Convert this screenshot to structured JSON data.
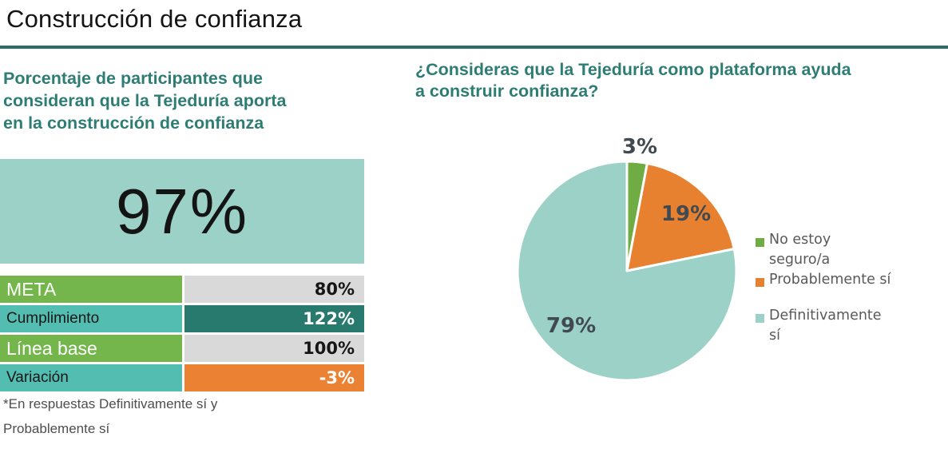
{
  "page": {
    "title": "Construcción de confianza"
  },
  "left_panel": {
    "heading": "Porcentaje de participantes que\nconsideran que la Tejeduría aporta\nen la construcción de confianza",
    "footnote": "*En respuestas Definitivamente sí y\nProbablemente sí"
  },
  "right_panel": {
    "heading": "¿Consideras que la Tejeduría como plataforma ayuda\na construir confianza?"
  },
  "chart_data": [
    {
      "type": "table",
      "title": "Porcentaje de participantes que consideran que la Tejeduría aporta en la construcción de confianza",
      "big_number": "97%",
      "rows": [
        [
          "META",
          "80%"
        ],
        [
          "Cumplimiento",
          "122%"
        ],
        [
          "Línea base",
          "100%"
        ],
        [
          "Variación",
          "-3%"
        ]
      ],
      "footnote": "*En respuestas Definitivamente sí y Probablemente sí"
    },
    {
      "type": "pie",
      "title": "¿Consideras que la Tejeduría como plataforma ayuda a construir confianza?",
      "categories": [
        "No estoy seguro/a",
        "Probablemente sí",
        "Definitivamente sí"
      ],
      "values": [
        3,
        19,
        79
      ],
      "labels": [
        "3%",
        "19%",
        "79%"
      ],
      "colors": [
        "#6FAC44",
        "#E8812F",
        "#9CD1C7"
      ],
      "legend_position": "right",
      "start_angle_deg": 0,
      "slice_border_color": "#ffffff"
    }
  ],
  "colors": {
    "heading_teal": "#2E7D75",
    "rule_teal": "#2F6B68",
    "big_box_teal": "#9CD1C7",
    "table_green": "#74B64B",
    "table_teal": "#52BDB0",
    "table_dark_teal": "#287A6F",
    "table_orange": "#EB8233",
    "table_gray": "#D9D9D9"
  }
}
